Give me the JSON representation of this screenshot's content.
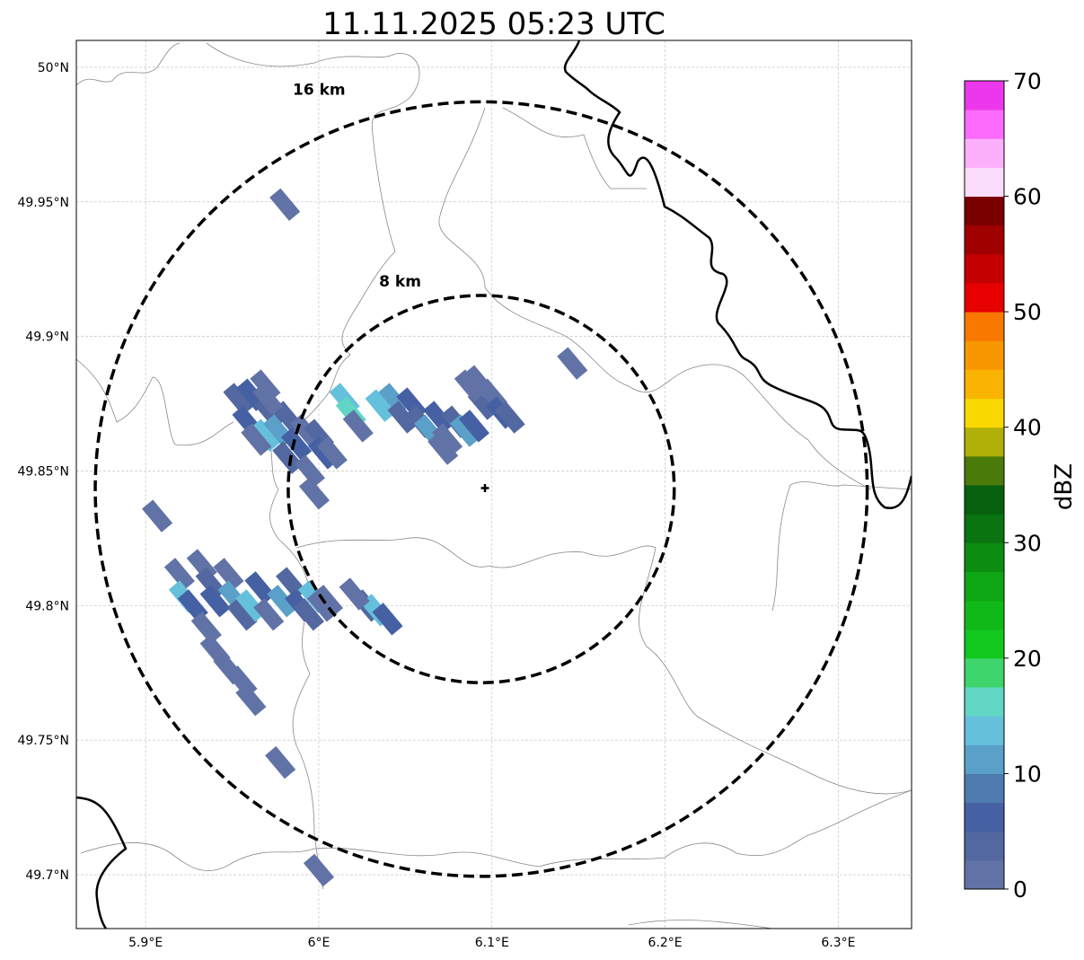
{
  "chart_data": {
    "type": "heatmap",
    "title": "11.11.2025 05:23 UTC",
    "xlim": [
      5.86,
      6.3423
    ],
    "ylim": [
      49.68,
      50.01
    ],
    "xticks": [
      5.9,
      6.0,
      6.1,
      6.2,
      6.3
    ],
    "xtick_labels": [
      "5.9°E",
      "6°E",
      "6.1°E",
      "6.2°E",
      "6.3°E"
    ],
    "yticks": [
      50.0,
      49.95,
      49.9,
      49.85,
      49.8,
      49.75,
      49.7
    ],
    "ytick_labels": [
      "50°N",
      "49.95°N",
      "49.9°N",
      "49.85°N",
      "49.8°N",
      "49.75°N",
      "49.7°N"
    ],
    "grid": true,
    "radar_center": [
      6.0938,
      49.8433
    ],
    "range_rings": [
      {
        "km": 8,
        "label": "8 km"
      },
      {
        "km": 16,
        "label": "16 km"
      }
    ],
    "colorbar": {
      "label": "dBZ",
      "min": 0,
      "max": 70,
      "step": 2.5,
      "ticks": [
        "0",
        "10",
        "20",
        "30",
        "40",
        "50",
        "60",
        "70"
      ],
      "colors": [
        "#6173a6",
        "#5368a0",
        "#4560a3",
        "#4e7ab0",
        "#5aa0c8",
        "#65c0dc",
        "#62d6c4",
        "#3ed66c",
        "#12c81e",
        "#10b818",
        "#0ea614",
        "#0c8c10",
        "#097410",
        "#07600e",
        "#4a7a0a",
        "#b0b008",
        "#f8d800",
        "#f8b400",
        "#f89800",
        "#f87800",
        "#e60000",
        "#c40000",
        "#a00000",
        "#7a0000",
        "#fcdcfc",
        "#fcb0fc",
        "#fc6cfc",
        "#ec38ec"
      ]
    },
    "echo_cells_lon_lat_dbz": [
      [
        5.9536,
        49.8767,
        4
      ],
      [
        5.9613,
        49.8783,
        6
      ],
      [
        5.9691,
        49.8817,
        2
      ],
      [
        5.9588,
        49.8683,
        6
      ],
      [
        5.9717,
        49.8717,
        4
      ],
      [
        5.9691,
        49.8633,
        14
      ],
      [
        5.9768,
        49.865,
        11
      ],
      [
        5.982,
        49.87,
        4
      ],
      [
        5.9639,
        49.8617,
        2
      ],
      [
        5.9871,
        49.86,
        6
      ],
      [
        5.9923,
        49.865,
        2
      ],
      [
        6.0,
        49.8633,
        4
      ],
      [
        6.0026,
        49.8567,
        6
      ],
      [
        5.982,
        49.855,
        4
      ],
      [
        5.9948,
        49.85,
        2
      ],
      [
        5.9974,
        49.8417,
        1
      ],
      [
        6.0077,
        49.8567,
        2
      ],
      [
        5.9706,
        49.8767,
        1
      ],
      [
        6.0149,
        49.8767,
        14
      ],
      [
        6.0186,
        49.8717,
        16
      ],
      [
        6.0227,
        49.8667,
        1
      ],
      [
        6.0356,
        49.8743,
        14
      ],
      [
        6.0433,
        49.8767,
        11
      ],
      [
        6.0485,
        49.87,
        4
      ],
      [
        6.0536,
        49.875,
        6
      ],
      [
        6.0588,
        49.8683,
        4
      ],
      [
        6.0639,
        49.865,
        11
      ],
      [
        6.0691,
        49.87,
        6
      ],
      [
        6.0742,
        49.8617,
        2
      ],
      [
        6.0794,
        49.8683,
        4
      ],
      [
        6.0845,
        49.865,
        11
      ],
      [
        6.0897,
        49.8667,
        6
      ],
      [
        6.0948,
        49.875,
        4
      ],
      [
        6.1,
        49.8783,
        2
      ],
      [
        6.1052,
        49.8717,
        6
      ],
      [
        6.1103,
        49.87,
        4
      ],
      [
        6.0871,
        49.8817,
        1
      ],
      [
        6.0717,
        49.8583,
        1
      ],
      [
        6.0923,
        49.8833,
        1
      ],
      [
        5.9196,
        49.8117,
        2
      ],
      [
        5.9222,
        49.8033,
        14
      ],
      [
        5.9273,
        49.8,
        6
      ],
      [
        5.9325,
        49.815,
        1
      ],
      [
        5.9376,
        49.8083,
        4
      ],
      [
        5.9402,
        49.8017,
        6
      ],
      [
        5.9479,
        49.8117,
        2
      ],
      [
        5.9505,
        49.8033,
        11
      ],
      [
        5.9557,
        49.7967,
        4
      ],
      [
        5.9608,
        49.8,
        14
      ],
      [
        5.966,
        49.8067,
        6
      ],
      [
        5.9711,
        49.7967,
        2
      ],
      [
        5.9789,
        49.8017,
        11
      ],
      [
        5.984,
        49.8083,
        4
      ],
      [
        5.9892,
        49.8,
        6
      ],
      [
        5.9943,
        49.7967,
        4
      ],
      [
        5.9969,
        49.8033,
        14
      ],
      [
        6.0021,
        49.8,
        2
      ],
      [
        5.9351,
        49.7917,
        1
      ],
      [
        5.9402,
        49.7833,
        1
      ],
      [
        5.9479,
        49.7767,
        1
      ],
      [
        5.9557,
        49.7717,
        1
      ],
      [
        5.9608,
        49.765,
        1
      ],
      [
        6.0052,
        49.8017,
        1
      ],
      [
        5.9067,
        49.8333,
        1
      ],
      [
        5.9804,
        49.949,
        1
      ],
      [
        6.1464,
        49.89,
        1
      ],
      [
        5.9778,
        49.7417,
        1
      ],
      [
        6.0,
        49.7017,
        1
      ],
      [
        6.0278,
        49.8,
        4
      ],
      [
        6.033,
        49.7983,
        14
      ],
      [
        6.0397,
        49.795,
        6
      ],
      [
        6.0206,
        49.8043,
        1
      ]
    ]
  }
}
